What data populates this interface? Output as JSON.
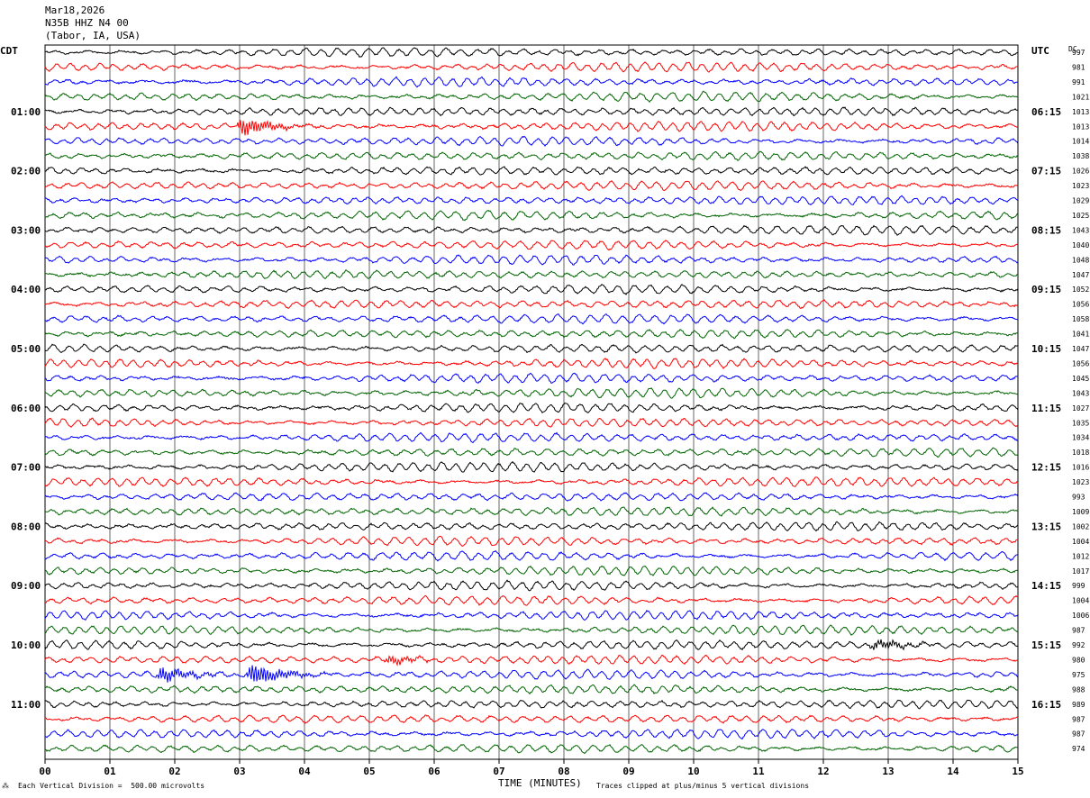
{
  "header": {
    "date": "Mar18,2026",
    "station": "N35B HHZ N4 00",
    "location": "(Tabor, IA, USA)"
  },
  "left_timezone": "CDT",
  "right_timezone": "UTC",
  "dc_label": "DC",
  "footer": {
    "scale_note": "Each Vertical Division =  500.00 microvolts",
    "xlabel": "TIME (MINUTES)",
    "clip_note": "Traces clipped at plus/minus 5 vertical divisions"
  },
  "colors": {
    "cycle": [
      "#000000",
      "#ff0000",
      "#0000ff",
      "#006400"
    ],
    "grid": "#000000",
    "background": "#ffffff"
  },
  "chart_data": {
    "type": "line",
    "subtype": "helicorder",
    "title": "",
    "xlabel": "TIME (MINUTES)",
    "xlim": [
      0,
      15
    ],
    "x_ticks": [
      "00",
      "01",
      "02",
      "03",
      "04",
      "05",
      "06",
      "07",
      "08",
      "09",
      "10",
      "11",
      "12",
      "13",
      "14",
      "15"
    ],
    "trace_count": 48,
    "hour_labels_left": [
      "01:00",
      "02:00",
      "03:00",
      "04:00",
      "05:00",
      "06:00",
      "07:00",
      "08:00",
      "09:00",
      "10:00",
      "11:00"
    ],
    "hour_labels_right": [
      "06:15",
      "07:15",
      "08:15",
      "09:15",
      "10:15",
      "11:15",
      "12:15",
      "13:15",
      "14:15",
      "15:15",
      "16:15"
    ],
    "hour_label_rows": [
      4,
      8,
      12,
      16,
      20,
      24,
      28,
      32,
      36,
      40,
      44
    ],
    "dc_offsets": [
      997,
      981,
      991,
      1021,
      1013,
      1013,
      1014,
      1038,
      1026,
      1023,
      1029,
      1025,
      1043,
      1040,
      1048,
      1047,
      1052,
      1056,
      1058,
      1041,
      1047,
      1056,
      1045,
      1043,
      1027,
      1035,
      1034,
      1018,
      1016,
      1023,
      993,
      1009,
      1002,
      1004,
      1012,
      1017,
      999,
      1004,
      1006,
      987,
      992,
      980,
      975,
      988,
      989,
      987,
      987,
      974
    ],
    "events": [
      {
        "row": 5,
        "minute": 3.05,
        "amplitude": 2.2
      },
      {
        "row": 41,
        "minute": 5.3,
        "amplitude": 1.0
      },
      {
        "row": 42,
        "minute": 3.2,
        "amplitude": 2.8
      },
      {
        "row": 42,
        "minute": 1.8,
        "amplitude": 1.8
      },
      {
        "row": 40,
        "minute": 12.8,
        "amplitude": 1.2
      }
    ]
  }
}
